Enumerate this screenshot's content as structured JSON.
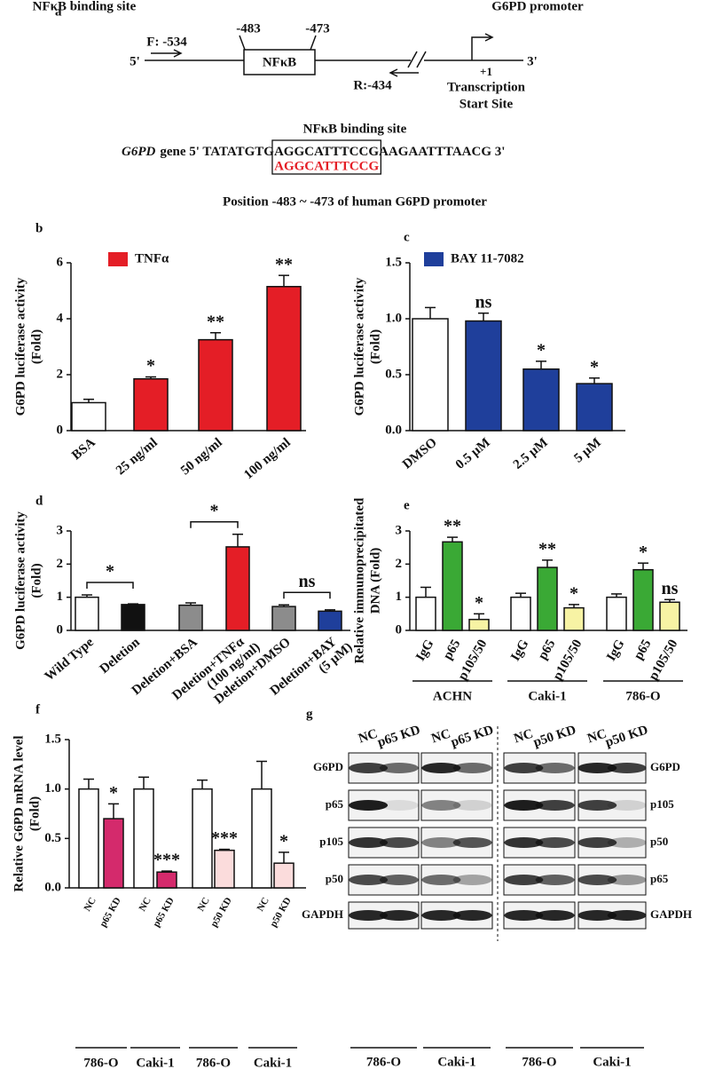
{
  "panel_a": {
    "letter": "a",
    "nfkb_site_label": "NFκB binding site",
    "promoter_label": "G6PD promoter",
    "pos_483": "-483",
    "pos_473": "-473",
    "forward_primer": "F: -534",
    "five_prime": "5'",
    "box_label": "NFκB",
    "three_prime": "3'",
    "plus_one": "+1",
    "reverse_primer": "R:-434",
    "tss": [
      "Transcription",
      "Start Site"
    ],
    "site_title": "NFκB binding site",
    "seq": {
      "gene": "G6PD",
      "prefix": "gene 5' TATATGTG",
      "site": "AGGCATTTCCG",
      "suffix": "AAGAATTTAACG 3'",
      "match": "AGGCATTTCCG"
    },
    "position_note": "Position -483 ~ -473 of human G6PD promoter"
  },
  "chart_data": [
    {
      "panel": "b",
      "type": "bar",
      "ylabel": [
        "G6PD luciferase activity",
        "(Fold)"
      ],
      "categories": [
        "BSA",
        "25 ng/ml",
        "50 ng/ml",
        "100 ng/ml"
      ],
      "values": [
        1.0,
        1.85,
        3.25,
        5.15
      ],
      "errors": [
        0.12,
        0.07,
        0.25,
        0.4
      ],
      "colors": [
        "#ffffff",
        "#e41e26",
        "#e41e26",
        "#e41e26"
      ],
      "sig_labels": [
        null,
        "*",
        "**",
        "**"
      ],
      "legend": {
        "name": "TNFα",
        "color": "#e41e26"
      },
      "ylim": [
        0,
        6
      ],
      "yticks": [
        0,
        2,
        4,
        6
      ]
    },
    {
      "panel": "c",
      "type": "bar",
      "ylabel": [
        "G6PD luciferase activity",
        "(Fold)"
      ],
      "categories": [
        "DMSO",
        "0.5 µM",
        "2.5 µM",
        "5 µM"
      ],
      "values": [
        1.0,
        0.98,
        0.55,
        0.42
      ],
      "errors": [
        0.1,
        0.07,
        0.07,
        0.05
      ],
      "colors": [
        "#ffffff",
        "#1f3f9b",
        "#1f3f9b",
        "#1f3f9b"
      ],
      "sig_labels": [
        null,
        "ns",
        "*",
        "*"
      ],
      "legend": {
        "name": "BAY 11-7082",
        "color": "#1f3f9b"
      },
      "ylim": [
        0,
        1.5
      ],
      "yticks": [
        {
          "value": 0,
          "label": "0.0"
        },
        0.5,
        {
          "value": 1,
          "label": "1.0"
        },
        1.5
      ]
    },
    {
      "panel": "d",
      "type": "bar",
      "ylabel": [
        "G6PD luciferase activity",
        "(Fold)"
      ],
      "categories": [
        "Wild Type",
        "Deletion",
        "Deletion+BSA",
        [
          "Deletion+TNFα",
          "(100 ng/ml)"
        ],
        "Deletion+DMSO",
        [
          "Deletion+BAY",
          "(5 µM)"
        ]
      ],
      "values": [
        1.0,
        0.78,
        0.76,
        2.52,
        0.72,
        0.58
      ],
      "errors": [
        0.07,
        0.02,
        0.07,
        0.38,
        0.05,
        0.04
      ],
      "colors": [
        "#ffffff",
        "#111111",
        "#8c8c8c",
        "#e41e26",
        "#8c8c8c",
        "#1f3f9b"
      ],
      "brackets": [
        {
          "pair": [
            0,
            1
          ],
          "label": "*"
        },
        {
          "pair": [
            2,
            3
          ],
          "label": "*"
        },
        {
          "pair": [
            4,
            5
          ],
          "label": "ns"
        }
      ],
      "ylim": [
        0,
        3
      ],
      "yticks": [
        0,
        1,
        2,
        3
      ]
    },
    {
      "panel": "e",
      "type": "grouped_bar",
      "ylabel": [
        "Relative immunoprecipitated",
        "DNA (Fold)"
      ],
      "groups": [
        "ACHN",
        "Caki-1",
        "786-O"
      ],
      "series": [
        {
          "name": "IgG",
          "color": "#ffffff",
          "values": [
            1.0,
            1.0,
            1.0
          ],
          "errors": [
            0.3,
            0.12,
            0.1
          ],
          "sig_labels": [
            null,
            null,
            null
          ]
        },
        {
          "name": "p65",
          "color": "#3aa935",
          "values": [
            2.67,
            1.9,
            1.83
          ],
          "errors": [
            0.14,
            0.22,
            0.2
          ],
          "sig_labels": [
            "**",
            "**",
            "*"
          ]
        },
        {
          "name": "p105/50",
          "color": "#f7f3a4",
          "values": [
            0.33,
            0.68,
            0.85
          ],
          "errors": [
            0.17,
            0.1,
            0.08
          ],
          "sig_labels": [
            "*",
            "*",
            "ns"
          ]
        }
      ],
      "ylim": [
        0,
        3
      ],
      "yticks": [
        0,
        1,
        2,
        3
      ]
    },
    {
      "panel": "f",
      "type": "bar",
      "ylabel": [
        "Relative G6PD mRNA level",
        "(Fold)"
      ],
      "categories": [
        "NC",
        "p65 KD",
        "NC",
        "p65 KD",
        "NC",
        "p50 KD",
        "NC",
        "p50 KD"
      ],
      "values": [
        1.0,
        0.7,
        1.0,
        0.16,
        1.0,
        0.38,
        1.0,
        0.25
      ],
      "errors": [
        0.1,
        0.15,
        0.12,
        0.01,
        0.09,
        0.01,
        0.28,
        0.11
      ],
      "colors": [
        "#ffffff",
        "#d42a6c",
        "#ffffff",
        "#d42a6c",
        "#ffffff",
        "#fbdcdc",
        "#ffffff",
        "#fbdcdc"
      ],
      "sig_labels": [
        null,
        "*",
        null,
        "***",
        null,
        "***",
        null,
        "*"
      ],
      "groups": [
        "786-O",
        "Caki-1",
        "786-O",
        "Caki-1"
      ],
      "ylim": [
        0,
        1.5
      ],
      "yticks": [
        {
          "value": 0,
          "label": "0.0"
        },
        0.5,
        {
          "value": 1,
          "label": "1.0"
        },
        1.5
      ]
    }
  ],
  "panel_g": {
    "letter": "g",
    "lane_labels": [
      "NC",
      "p65 KD",
      "NC",
      "p65 KD",
      "NC",
      "p50 KD",
      "NC",
      "p50 KD"
    ],
    "left_rows": [
      "G6PD",
      "p65",
      "p105",
      "p50",
      "GAPDH"
    ],
    "right_rows": [
      "G6PD",
      "p105",
      "p50",
      "p65",
      "GAPDH"
    ],
    "cell_lines": [
      "786-O",
      "Caki-1",
      "786-O",
      "Caki-1"
    ]
  }
}
